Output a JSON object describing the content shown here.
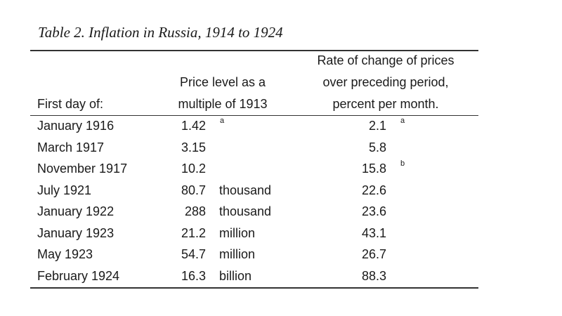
{
  "table": {
    "caption": "Table 2. Inflation in Russia, 1914 to 1924",
    "headers": {
      "first_day": "First day of:",
      "price_level": [
        "Price level as a",
        "multiple of 1913"
      ],
      "rate_change": [
        "Rate of change of prices",
        "over preceding period,",
        "percent per month."
      ]
    },
    "rows": [
      {
        "date": "January 1916",
        "price": "1.42",
        "unit": "",
        "price_note": "a",
        "rate": "2.1",
        "rate_note": "a"
      },
      {
        "date": "March 1917",
        "price": "3.15",
        "unit": "",
        "price_note": "",
        "rate": "5.8",
        "rate_note": ""
      },
      {
        "date": "November 1917",
        "price": "10.2",
        "unit": "",
        "price_note": "",
        "rate": "15.8",
        "rate_note": "b"
      },
      {
        "date": "July 1921",
        "price": "80.7",
        "unit": "thousand",
        "price_note": "",
        "rate": "22.6",
        "rate_note": ""
      },
      {
        "date": "January 1922",
        "price": "288",
        "unit": "thousand",
        "price_note": "",
        "rate": "23.6",
        "rate_note": ""
      },
      {
        "date": "January 1923",
        "price": "21.2",
        "unit": "million",
        "price_note": "",
        "rate": "43.1",
        "rate_note": ""
      },
      {
        "date": "May 1923",
        "price": "54.7",
        "unit": "million",
        "price_note": "",
        "rate": "26.7",
        "rate_note": ""
      },
      {
        "date": "February 1924",
        "price": "16.3",
        "unit": "billion",
        "price_note": "",
        "rate": "88.3",
        "rate_note": ""
      }
    ]
  }
}
